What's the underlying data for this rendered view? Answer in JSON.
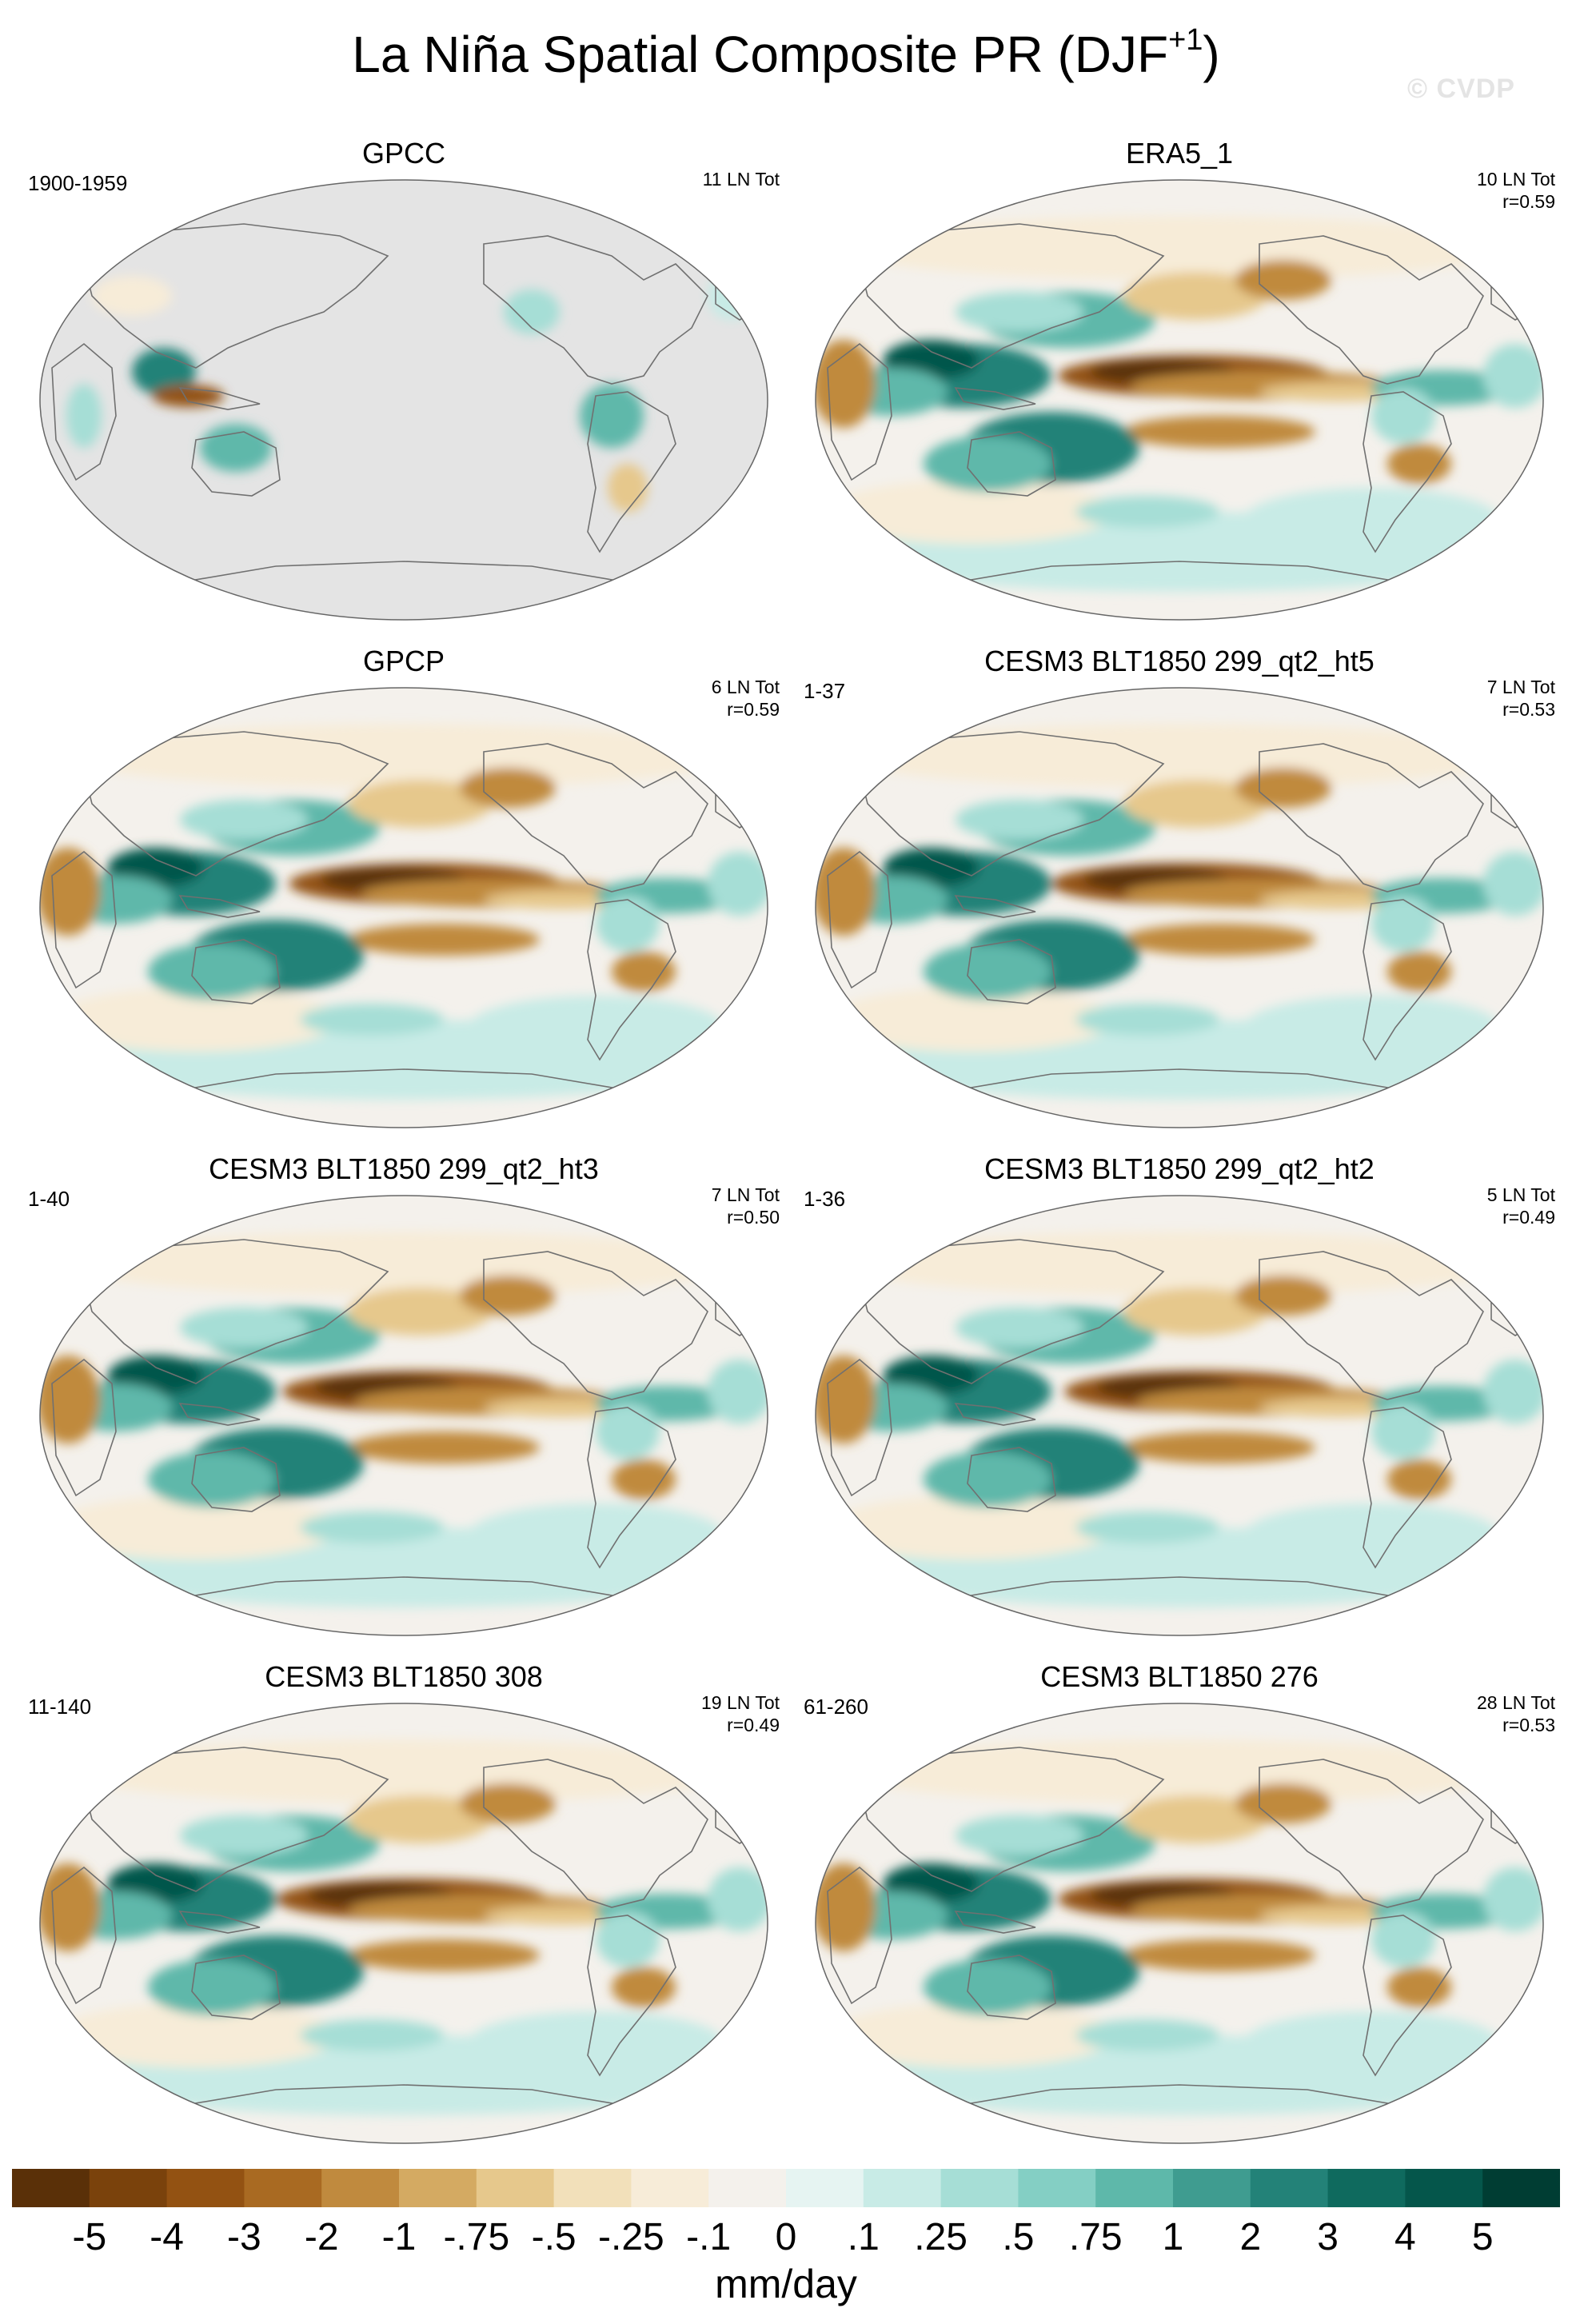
{
  "title": {
    "main": "La Niña Spatial Composite PR (DJF",
    "superscript": "+1",
    "close": ")"
  },
  "watermark": "© CVDP",
  "panels": [
    {
      "title": "GPCC",
      "range": "1900-1959",
      "count": "11 LN Tot",
      "corr": "",
      "mask": true
    },
    {
      "title": "ERA5_1",
      "range": "",
      "count": "10 LN Tot",
      "corr": "r=0.59",
      "mask": false
    },
    {
      "title": "GPCP",
      "range": "",
      "count": "6 LN Tot",
      "corr": "r=0.59",
      "mask": false
    },
    {
      "title": "CESM3 BLT1850 299_qt2_ht5",
      "range": "1-37",
      "count": "7 LN Tot",
      "corr": "r=0.53",
      "mask": false
    },
    {
      "title": "CESM3 BLT1850 299_qt2_ht3",
      "range": "1-40",
      "count": "7 LN Tot",
      "corr": "r=0.50",
      "mask": false
    },
    {
      "title": "CESM3 BLT1850 299_qt2_ht2",
      "range": "1-36",
      "count": "5 LN Tot",
      "corr": "r=0.49",
      "mask": false
    },
    {
      "title": "CESM3 BLT1850 308",
      "range": "11-140",
      "count": "19 LN Tot",
      "corr": "r=0.49",
      "mask": false
    },
    {
      "title": "CESM3 BLT1850 276",
      "range": "61-260",
      "count": "28 LN Tot",
      "corr": "r=0.53",
      "mask": false
    }
  ],
  "colorbar": {
    "colors": [
      "#5a3008",
      "#7a420c",
      "#935212",
      "#a96a22",
      "#c08a3e",
      "#d4aa62",
      "#e6c88c",
      "#f2e0ba",
      "#f7ecd8",
      "#f4f1ec",
      "#e6f4f2",
      "#c8ebe6",
      "#a6ded6",
      "#84cfc4",
      "#5eb8aa",
      "#3f9c90",
      "#238278",
      "#0f6a5e",
      "#05564b",
      "#003d33"
    ],
    "labels": [
      "-5",
      "-4",
      "-3",
      "-2",
      "-1",
      "-.75",
      "-.5",
      "-.25",
      "-.1",
      "0",
      ".1",
      ".25",
      ".5",
      ".75",
      "1",
      "2",
      "3",
      "4",
      "5"
    ],
    "units": "mm/day"
  }
}
